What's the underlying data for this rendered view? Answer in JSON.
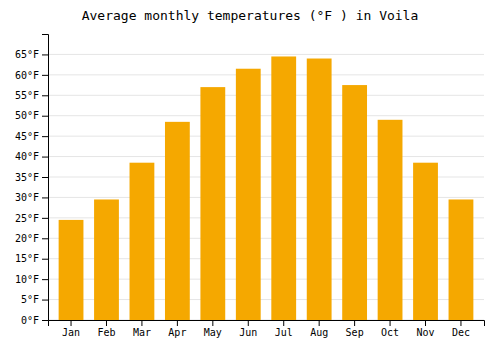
{
  "chart_data": {
    "type": "bar",
    "title": "Average monthly temperatures (°F ) in Voila",
    "categories": [
      "Jan",
      "Feb",
      "Mar",
      "Apr",
      "May",
      "Jun",
      "Jul",
      "Aug",
      "Sep",
      "Oct",
      "Nov",
      "Dec"
    ],
    "values": [
      24.5,
      29.5,
      38.5,
      48.5,
      57.0,
      61.5,
      64.5,
      64.0,
      57.5,
      49.0,
      38.5,
      29.5
    ],
    "color": "#F5A800",
    "ylim": [
      0,
      70
    ],
    "yticks": [
      {
        "value": 0,
        "label": "0°F"
      },
      {
        "value": 5,
        "label": "5°F"
      },
      {
        "value": 10,
        "label": "10°F"
      },
      {
        "value": 15,
        "label": "15°F"
      },
      {
        "value": 20,
        "label": "20°F"
      },
      {
        "value": 25,
        "label": "25°F"
      },
      {
        "value": 30,
        "label": "30°F"
      },
      {
        "value": 35,
        "label": "35°F"
      },
      {
        "value": 40,
        "label": "40°F"
      },
      {
        "value": 45,
        "label": "45°F"
      },
      {
        "value": 50,
        "label": "50°F"
      },
      {
        "value": 55,
        "label": "55°F"
      },
      {
        "value": 60,
        "label": "60°F"
      },
      {
        "value": 65,
        "label": "65°F"
      }
    ],
    "grid": true
  }
}
